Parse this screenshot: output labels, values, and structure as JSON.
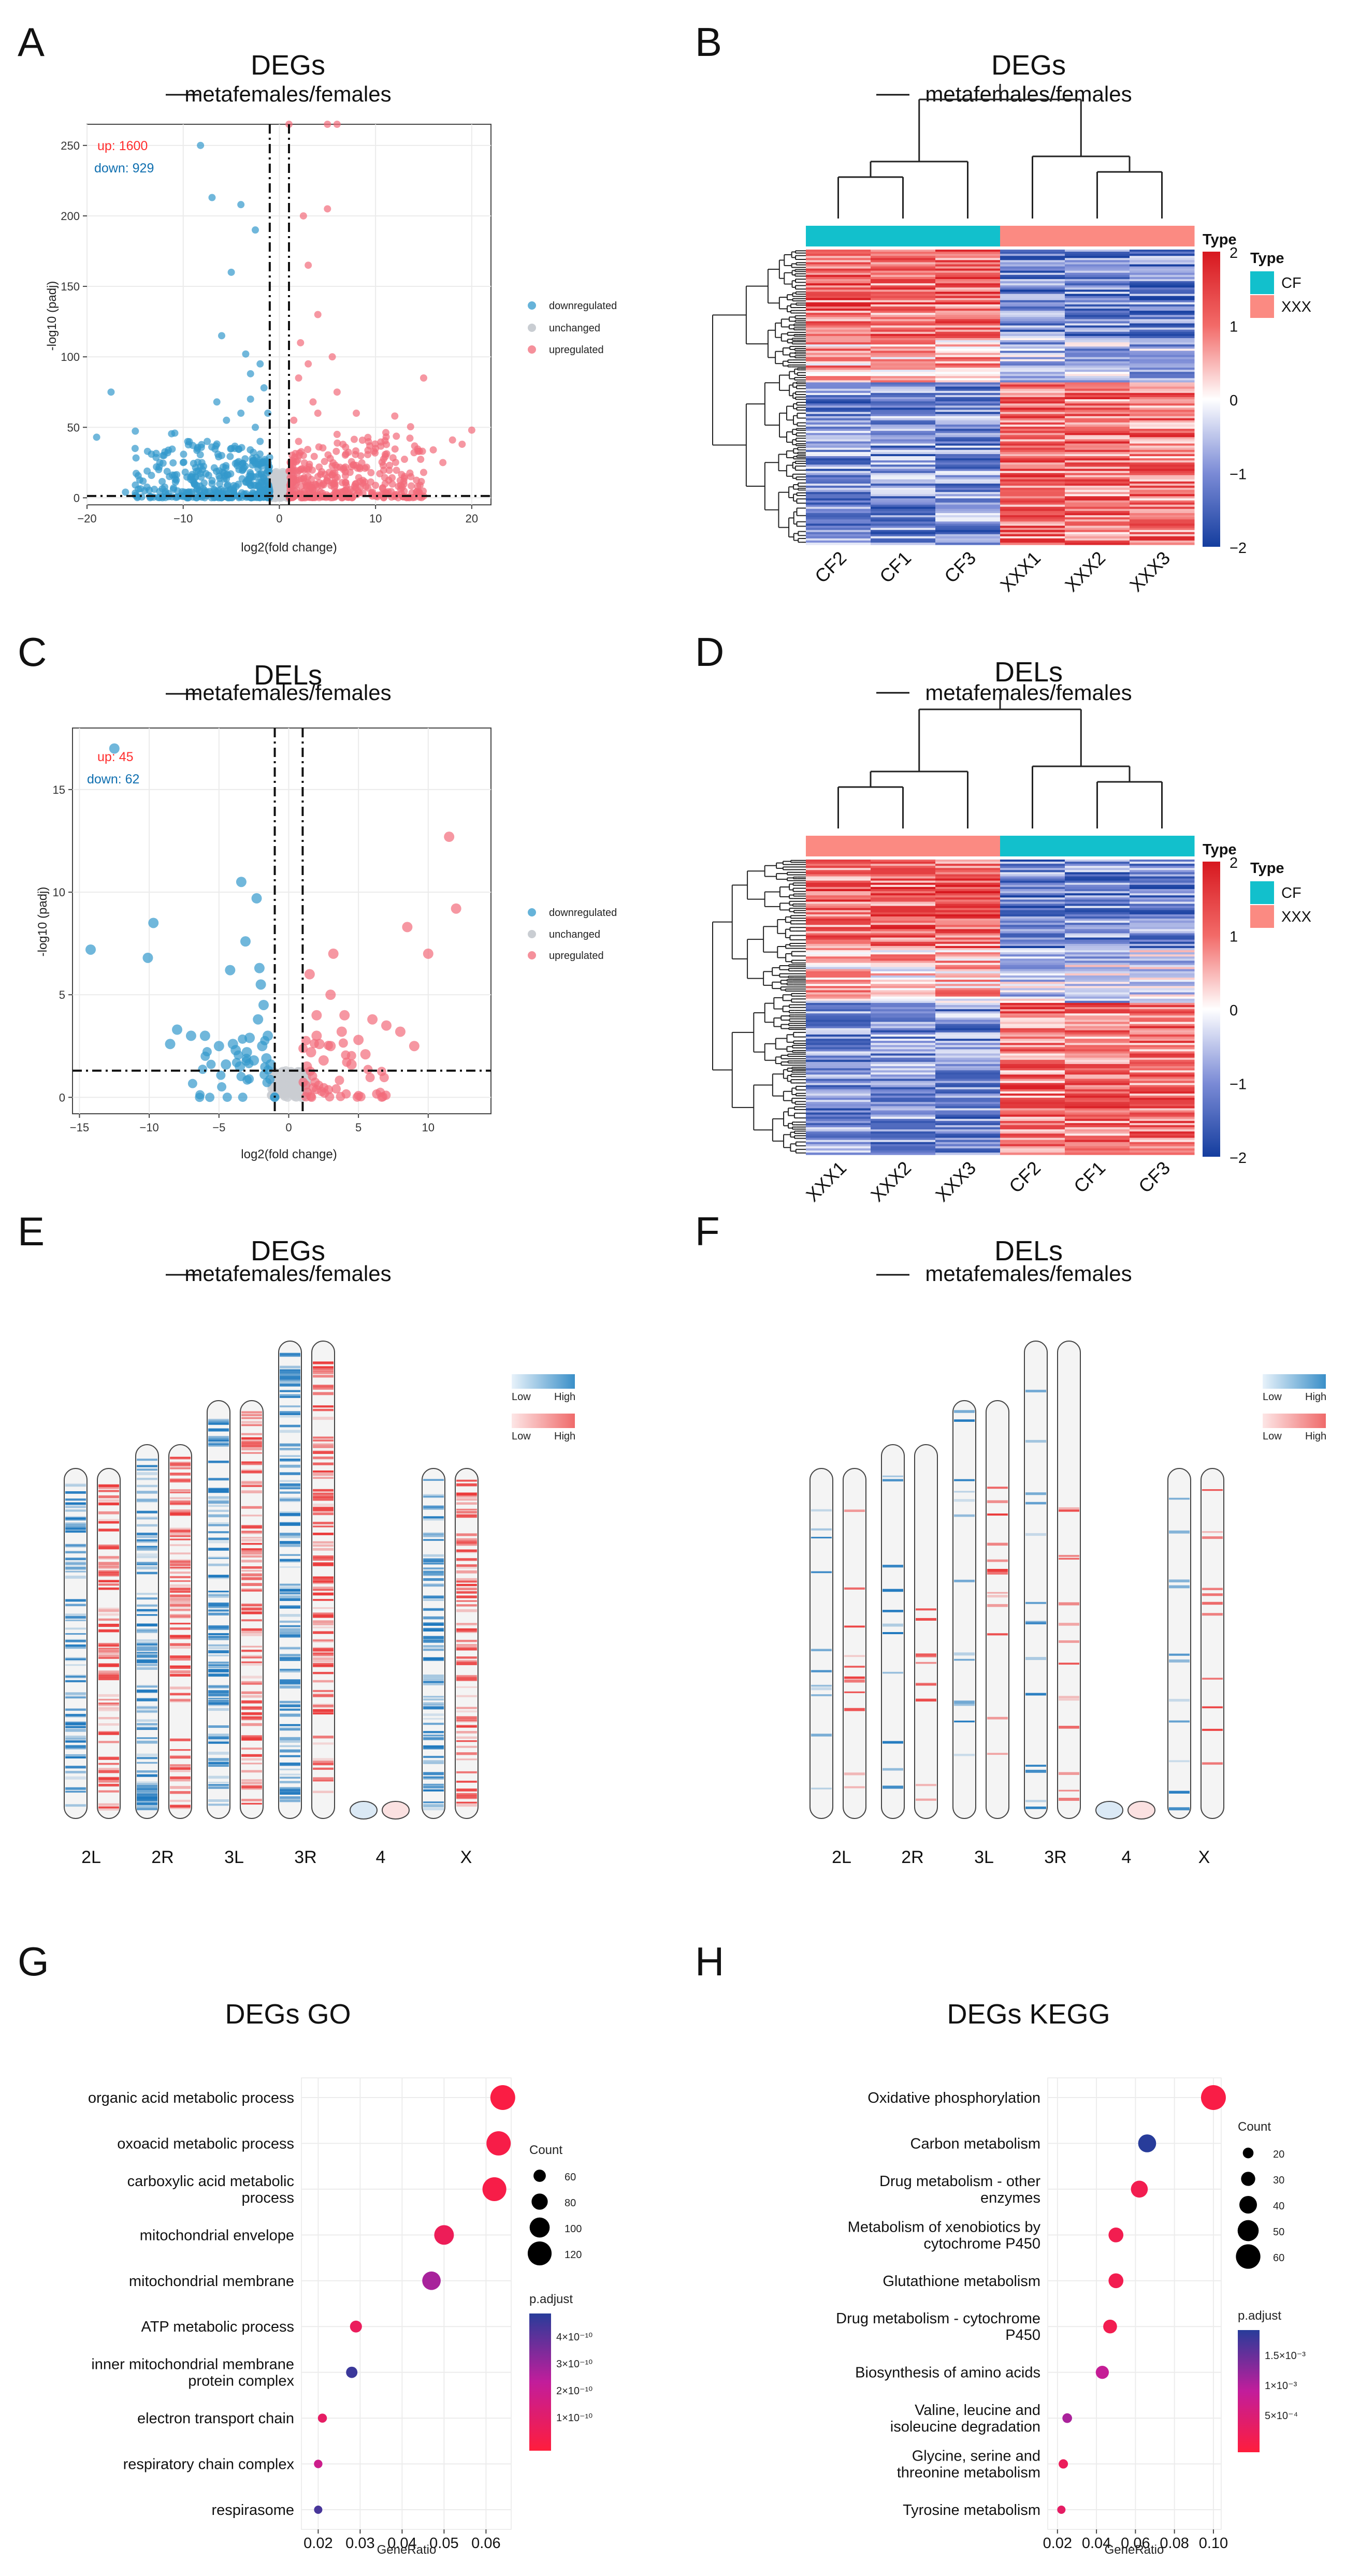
{
  "labels": {
    "A": "A",
    "B": "B",
    "C": "C",
    "D": "D",
    "E": "E",
    "F": "F",
    "G": "G",
    "H": "H"
  },
  "panelA": {
    "title": "DEGs",
    "subtitle": "metafemales/females",
    "up_text": "up: 1600",
    "down_text": "down: 929",
    "xlabel": "log2(fold change)",
    "ylabel": "-log10 (padj)",
    "xticks": [
      -20,
      -10,
      0,
      10,
      20
    ],
    "yticks": [
      0,
      50,
      100,
      150,
      200,
      250
    ],
    "xlim": [
      -20,
      22
    ],
    "ylim": [
      -5,
      265
    ],
    "legend": [
      "downregulated",
      "unchanged",
      "upregulated"
    ],
    "colors": {
      "down": "#3399cc",
      "unchanged": "#c9cdd2",
      "up": "#f26b7a",
      "up_text": "#ff2d2d",
      "down_text": "#0f6fb0"
    },
    "thresholds": {
      "x": [
        -1,
        1
      ],
      "y": 1.3
    }
  },
  "panelB": {
    "title": "DEGs",
    "subtitle": "metafemales/females",
    "columns": [
      "CF2",
      "CF1",
      "CF3",
      "XXX1",
      "XXX2",
      "XXX3"
    ],
    "col_types": [
      "CF",
      "CF",
      "CF",
      "XXX",
      "XXX",
      "XXX"
    ],
    "legend_title": "Type",
    "type_names": [
      "CF",
      "XXX"
    ],
    "type_colors": {
      "CF": "#12c0cc",
      "XXX": "#fb8a82"
    },
    "scale_ticks": [
      "2",
      "1",
      "0",
      "−1",
      "−2"
    ],
    "scale_colors": [
      "#d7181f",
      "#f26a68",
      "#ffffff",
      "#7b8bd6",
      "#143d9e"
    ]
  },
  "panelC": {
    "title": "DELs",
    "subtitle": "metafemales/females",
    "up_text": "up: 45",
    "down_text": "down: 62",
    "xlabel": "log2(fold change)",
    "ylabel": "-log10 (padj)",
    "xticks": [
      -15,
      -10,
      -5,
      0,
      5,
      10
    ],
    "yticks": [
      0,
      5,
      10,
      15
    ],
    "xlim": [
      -15.5,
      14.5
    ],
    "ylim": [
      -0.8,
      18
    ],
    "legend": [
      "downregulated",
      "unchanged",
      "upregulated"
    ],
    "thresholds": {
      "x": [
        -1,
        1
      ],
      "y": 1.3
    }
  },
  "panelD": {
    "title": "DELs",
    "subtitle": "metafemales/females",
    "columns": [
      "XXX1",
      "XXX2",
      "XXX3",
      "CF2",
      "CF1",
      "CF3"
    ],
    "col_types": [
      "XXX",
      "XXX",
      "XXX",
      "CF",
      "CF",
      "CF"
    ],
    "legend_title": "Type",
    "type_names": [
      "CF",
      "XXX"
    ],
    "scale_ticks": [
      "2",
      "1",
      "0",
      "−1",
      "−2"
    ]
  },
  "panelE": {
    "title": "DEGs",
    "subtitle": "metafemales/females",
    "chromosomes": [
      "2L",
      "2R",
      "3L",
      "3R",
      "4",
      "X"
    ],
    "legend": {
      "low": "Low",
      "high": "High"
    }
  },
  "panelF": {
    "title": "DELs",
    "subtitle": "metafemales/females",
    "chromosomes": [
      "2L",
      "2R",
      "3L",
      "3R",
      "4",
      "X"
    ],
    "legend": {
      "low": "Low",
      "high": "High"
    }
  },
  "panelG": {
    "title": "DEGs GO",
    "terms": [
      "organic acid metabolic process",
      "oxoacid metabolic process",
      "carboxylic acid metabolic process",
      "mitochondrial envelope",
      "mitochondrial membrane",
      "ATP metabolic process",
      "inner mitochondrial membrane protein complex",
      "electron transport chain",
      "respiratory chain complex",
      "respirasome"
    ],
    "term_lines": [
      [
        "organic acid metabolic process"
      ],
      [
        "oxoacid metabolic process"
      ],
      [
        "carboxylic acid metabolic",
        "process"
      ],
      [
        "mitochondrial envelope"
      ],
      [
        "mitochondrial membrane"
      ],
      [
        "ATP metabolic process"
      ],
      [
        "inner mitochondrial membrane",
        "protein complex"
      ],
      [
        "electron transport chain"
      ],
      [
        "respiratory chain complex"
      ],
      [
        "respirasome"
      ]
    ],
    "xlabel": "GeneRatio",
    "xticks": [
      "0.02",
      "0.03",
      "0.04",
      "0.05",
      "0.06"
    ],
    "count_title": "Count",
    "count_ticks": [
      "60",
      "80",
      "100",
      "120"
    ],
    "padj_title": "p.adjust",
    "padj_ticks": [
      "4×10⁻¹⁰",
      "3×10⁻¹⁰",
      "2×10⁻¹⁰",
      "1×10⁻¹⁰"
    ]
  },
  "panelH": {
    "title": "DEGs KEGG",
    "terms": [
      "Oxidative phosphorylation",
      "Carbon metabolism",
      "Drug metabolism - other enzymes",
      "Metabolism of xenobiotics by cytochrome P450",
      "Glutathione metabolism",
      "Drug metabolism - cytochrome P450",
      "Biosynthesis of amino acids",
      "Valine, leucine and isoleucine degradation",
      "Glycine, serine and threonine metabolism",
      "Tyrosine metabolism"
    ],
    "term_lines": [
      [
        "Oxidative phosphorylation"
      ],
      [
        "Carbon metabolism"
      ],
      [
        "Drug metabolism - other",
        "enzymes"
      ],
      [
        "Metabolism of xenobiotics by",
        "cytochrome P450"
      ],
      [
        "Glutathione metabolism"
      ],
      [
        "Drug metabolism - cytochrome",
        "P450"
      ],
      [
        "Biosynthesis of amino acids"
      ],
      [
        "Valine, leucine and",
        "isoleucine degradation"
      ],
      [
        "Glycine, serine and",
        "threonine metabolism"
      ],
      [
        "Tyrosine metabolism"
      ]
    ],
    "xlabel": "GeneRatio",
    "xticks": [
      "0.02",
      "0.04",
      "0.06",
      "0.08",
      "0.10"
    ],
    "count_title": "Count",
    "count_ticks": [
      "20",
      "30",
      "40",
      "50",
      "60"
    ],
    "padj_title": "p.adjust",
    "padj_ticks": [
      "1.5×10⁻³",
      "1×10⁻³",
      "5×10⁻⁴"
    ]
  },
  "chart_data": [
    {
      "id": "A",
      "type": "scatter",
      "title": "DEGs metafemales/females",
      "xlabel": "log2(fold change)",
      "ylabel": "-log10 (padj)",
      "xlim": [
        -20,
        22
      ],
      "ylim": [
        -5,
        265
      ],
      "series": [
        {
          "name": "downregulated",
          "points": [
            [
              -8.2,
              250
            ],
            [
              -7,
              213
            ],
            [
              -4,
              208
            ],
            [
              -2.5,
              190
            ],
            [
              -17.5,
              75
            ],
            [
              -19,
              43
            ],
            [
              -15,
              35
            ],
            [
              -12,
              30
            ],
            [
              -10,
              25
            ],
            [
              -8,
              20
            ],
            [
              -6,
              30
            ],
            [
              -5,
              35
            ],
            [
              -4,
              60
            ],
            [
              -3,
              70
            ],
            [
              -2.5,
              50
            ],
            [
              -2,
              40
            ],
            [
              -2,
              95
            ],
            [
              -3,
              88
            ],
            [
              -5,
              160
            ],
            [
              -6,
              115
            ],
            [
              -1.5,
              25
            ],
            [
              -1.5,
              12
            ],
            [
              -3,
              15
            ],
            [
              -4.5,
              8
            ],
            [
              -7,
              10
            ],
            [
              -9,
              12
            ],
            [
              -11,
              7
            ],
            [
              -13,
              6
            ],
            [
              -14,
              5
            ],
            [
              -16,
              4
            ],
            [
              -2,
              5
            ],
            [
              -1.2,
              60
            ],
            [
              -1.6,
              78
            ],
            [
              -3.5,
              102
            ],
            [
              -5.5,
              55
            ],
            [
              -7.5,
              40
            ],
            [
              -6.5,
              68
            ],
            [
              -2.8,
              28
            ],
            [
              -4.2,
              20
            ]
          ]
        },
        {
          "name": "upregulated",
          "points": [
            [
              1,
              265
            ],
            [
              5,
              265
            ],
            [
              6,
              265
            ],
            [
              5,
              205
            ],
            [
              2.5,
              200
            ],
            [
              3,
              165
            ],
            [
              4,
              130
            ],
            [
              3,
              95
            ],
            [
              2,
              85
            ],
            [
              6,
              75
            ],
            [
              4,
              60
            ],
            [
              8,
              60
            ],
            [
              12,
              58
            ],
            [
              15,
              85
            ],
            [
              20,
              48
            ],
            [
              19,
              38
            ],
            [
              17,
              25
            ],
            [
              15,
              18
            ],
            [
              13,
              14
            ],
            [
              11,
              10
            ],
            [
              9,
              8
            ],
            [
              7,
              6
            ],
            [
              2,
              40
            ],
            [
              2.5,
              30
            ],
            [
              3,
              20
            ],
            [
              4,
              15
            ],
            [
              5,
              12
            ],
            [
              1.5,
              55
            ],
            [
              10,
              35
            ],
            [
              14,
              32
            ],
            [
              16,
              34
            ],
            [
              18,
              41
            ],
            [
              6,
              45
            ],
            [
              3.5,
              68
            ],
            [
              2.2,
              110
            ],
            [
              5.5,
              100
            ],
            [
              7.5,
              22
            ],
            [
              1.3,
              15
            ],
            [
              2.8,
              9
            ]
          ]
        }
      ]
    },
    {
      "id": "B",
      "type": "heatmap",
      "title": "DEGs metafemales/females",
      "columns": [
        "CF2",
        "CF1",
        "CF3",
        "XXX1",
        "XXX2",
        "XXX3"
      ],
      "scale_range": [
        -2,
        2
      ]
    },
    {
      "id": "C",
      "type": "scatter",
      "title": "DELs metafemales/females",
      "xlabel": "log2(fold change)",
      "ylabel": "-log10 (padj)",
      "xlim": [
        -15.5,
        14.5
      ],
      "ylim": [
        -0.8,
        18
      ],
      "series": [
        {
          "name": "downregulated",
          "points": [
            [
              -12.5,
              17
            ],
            [
              -14.2,
              7.2
            ],
            [
              -10.1,
              6.8
            ],
            [
              -9.7,
              8.5
            ],
            [
              -4.2,
              6.2
            ],
            [
              -3.4,
              10.5
            ],
            [
              -3.1,
              7.6
            ],
            [
              -2.3,
              9.7
            ],
            [
              -2.1,
              6.3
            ],
            [
              -2,
              5.5
            ],
            [
              -1.8,
              4.5
            ],
            [
              -2.2,
              3.8
            ],
            [
              -1.5,
              3
            ],
            [
              -3,
              2.2
            ],
            [
              -4,
              2.6
            ],
            [
              -5,
              2.5
            ],
            [
              -6,
              3
            ],
            [
              -7,
              3
            ],
            [
              -8,
              3.3
            ],
            [
              -8.5,
              2.6
            ],
            [
              -2.5,
              1.8
            ],
            [
              -3.5,
              1.5
            ],
            [
              -1.6,
              1.9
            ],
            [
              -1.3,
              1.6
            ],
            [
              -2.8,
              2.9
            ],
            [
              -3.8,
              2.3
            ],
            [
              -4.5,
              1.6
            ],
            [
              -1.9,
              2.5
            ]
          ]
        },
        {
          "name": "upregulated",
          "points": [
            [
              11.5,
              12.7
            ],
            [
              12,
              9.2
            ],
            [
              8.5,
              8.3
            ],
            [
              10,
              7
            ],
            [
              3.2,
              7
            ],
            [
              1.5,
              6
            ],
            [
              3,
              5
            ],
            [
              4,
              4
            ],
            [
              2,
              4
            ],
            [
              6,
              3.8
            ],
            [
              7,
              3.5
            ],
            [
              8,
              3.2
            ],
            [
              5,
              2.8
            ],
            [
              9,
              2.5
            ],
            [
              2,
              3
            ],
            [
              3,
              2.5
            ],
            [
              1.6,
              2.2
            ],
            [
              2.5,
              1.8
            ],
            [
              4.5,
              1.6
            ],
            [
              1.3,
              1.5
            ],
            [
              2.2,
              2.6
            ],
            [
              3.8,
              3.2
            ],
            [
              5.5,
              2.1
            ]
          ]
        }
      ]
    },
    {
      "id": "D",
      "type": "heatmap",
      "title": "DELs metafemales/females",
      "columns": [
        "XXX1",
        "XXX2",
        "XXX3",
        "CF2",
        "CF1",
        "CF3"
      ],
      "scale_range": [
        -2,
        2
      ]
    },
    {
      "id": "E",
      "type": "chromosome-density",
      "title": "DEGs metafemales/females",
      "chromosomes": [
        "2L",
        "2R",
        "3L",
        "3R",
        "4",
        "X"
      ]
    },
    {
      "id": "F",
      "type": "chromosome-density",
      "title": "DELs metafemales/females",
      "chromosomes": [
        "2L",
        "2R",
        "3L",
        "3R",
        "4",
        "X"
      ]
    },
    {
      "id": "G",
      "type": "scatter",
      "title": "DEGs GO",
      "xlabel": "GeneRatio",
      "categories": [
        "organic acid metabolic process",
        "oxoacid metabolic process",
        "carboxylic acid metabolic process",
        "mitochondrial envelope",
        "mitochondrial membrane",
        "ATP metabolic process",
        "inner mitochondrial membrane protein complex",
        "electron transport chain",
        "respiratory chain complex",
        "respirasome"
      ],
      "gene_ratio": [
        0.064,
        0.063,
        0.062,
        0.05,
        0.047,
        0.029,
        0.028,
        0.021,
        0.02,
        0.02
      ],
      "count": [
        125,
        122,
        120,
        98,
        92,
        58,
        55,
        43,
        40,
        39
      ],
      "p_adjust": [
        2e-11,
        3e-11,
        3e-11,
        7e-11,
        2.8e-10,
        8e-11,
        4.5e-10,
        1e-10,
        2e-10,
        4.3e-10
      ],
      "xlim": [
        0.016,
        0.066
      ]
    },
    {
      "id": "H",
      "type": "scatter",
      "title": "DEGs KEGG",
      "xlabel": "GeneRatio",
      "categories": [
        "Oxidative phosphorylation",
        "Carbon metabolism",
        "Drug metabolism - other enzymes",
        "Metabolism of xenobiotics by cytochrome P450",
        "Glutathione metabolism",
        "Drug metabolism - cytochrome P450",
        "Biosynthesis of amino acids",
        "Valine, leucine and isoleucine degradation",
        "Glycine, serine and threonine metabolism",
        "Tyrosine metabolism"
      ],
      "gene_ratio": [
        0.1,
        0.066,
        0.062,
        0.05,
        0.05,
        0.047,
        0.043,
        0.025,
        0.023,
        0.022
      ],
      "count": [
        61,
        41,
        38,
        32,
        32,
        29,
        27,
        17,
        16,
        13
      ],
      "p_adjust": [
        0.0001,
        0.0019,
        0.0002,
        0.0002,
        0.0002,
        0.0002,
        0.0009,
        0.0011,
        0.0003,
        0.0004
      ],
      "xlim": [
        0.015,
        0.104
      ]
    }
  ]
}
